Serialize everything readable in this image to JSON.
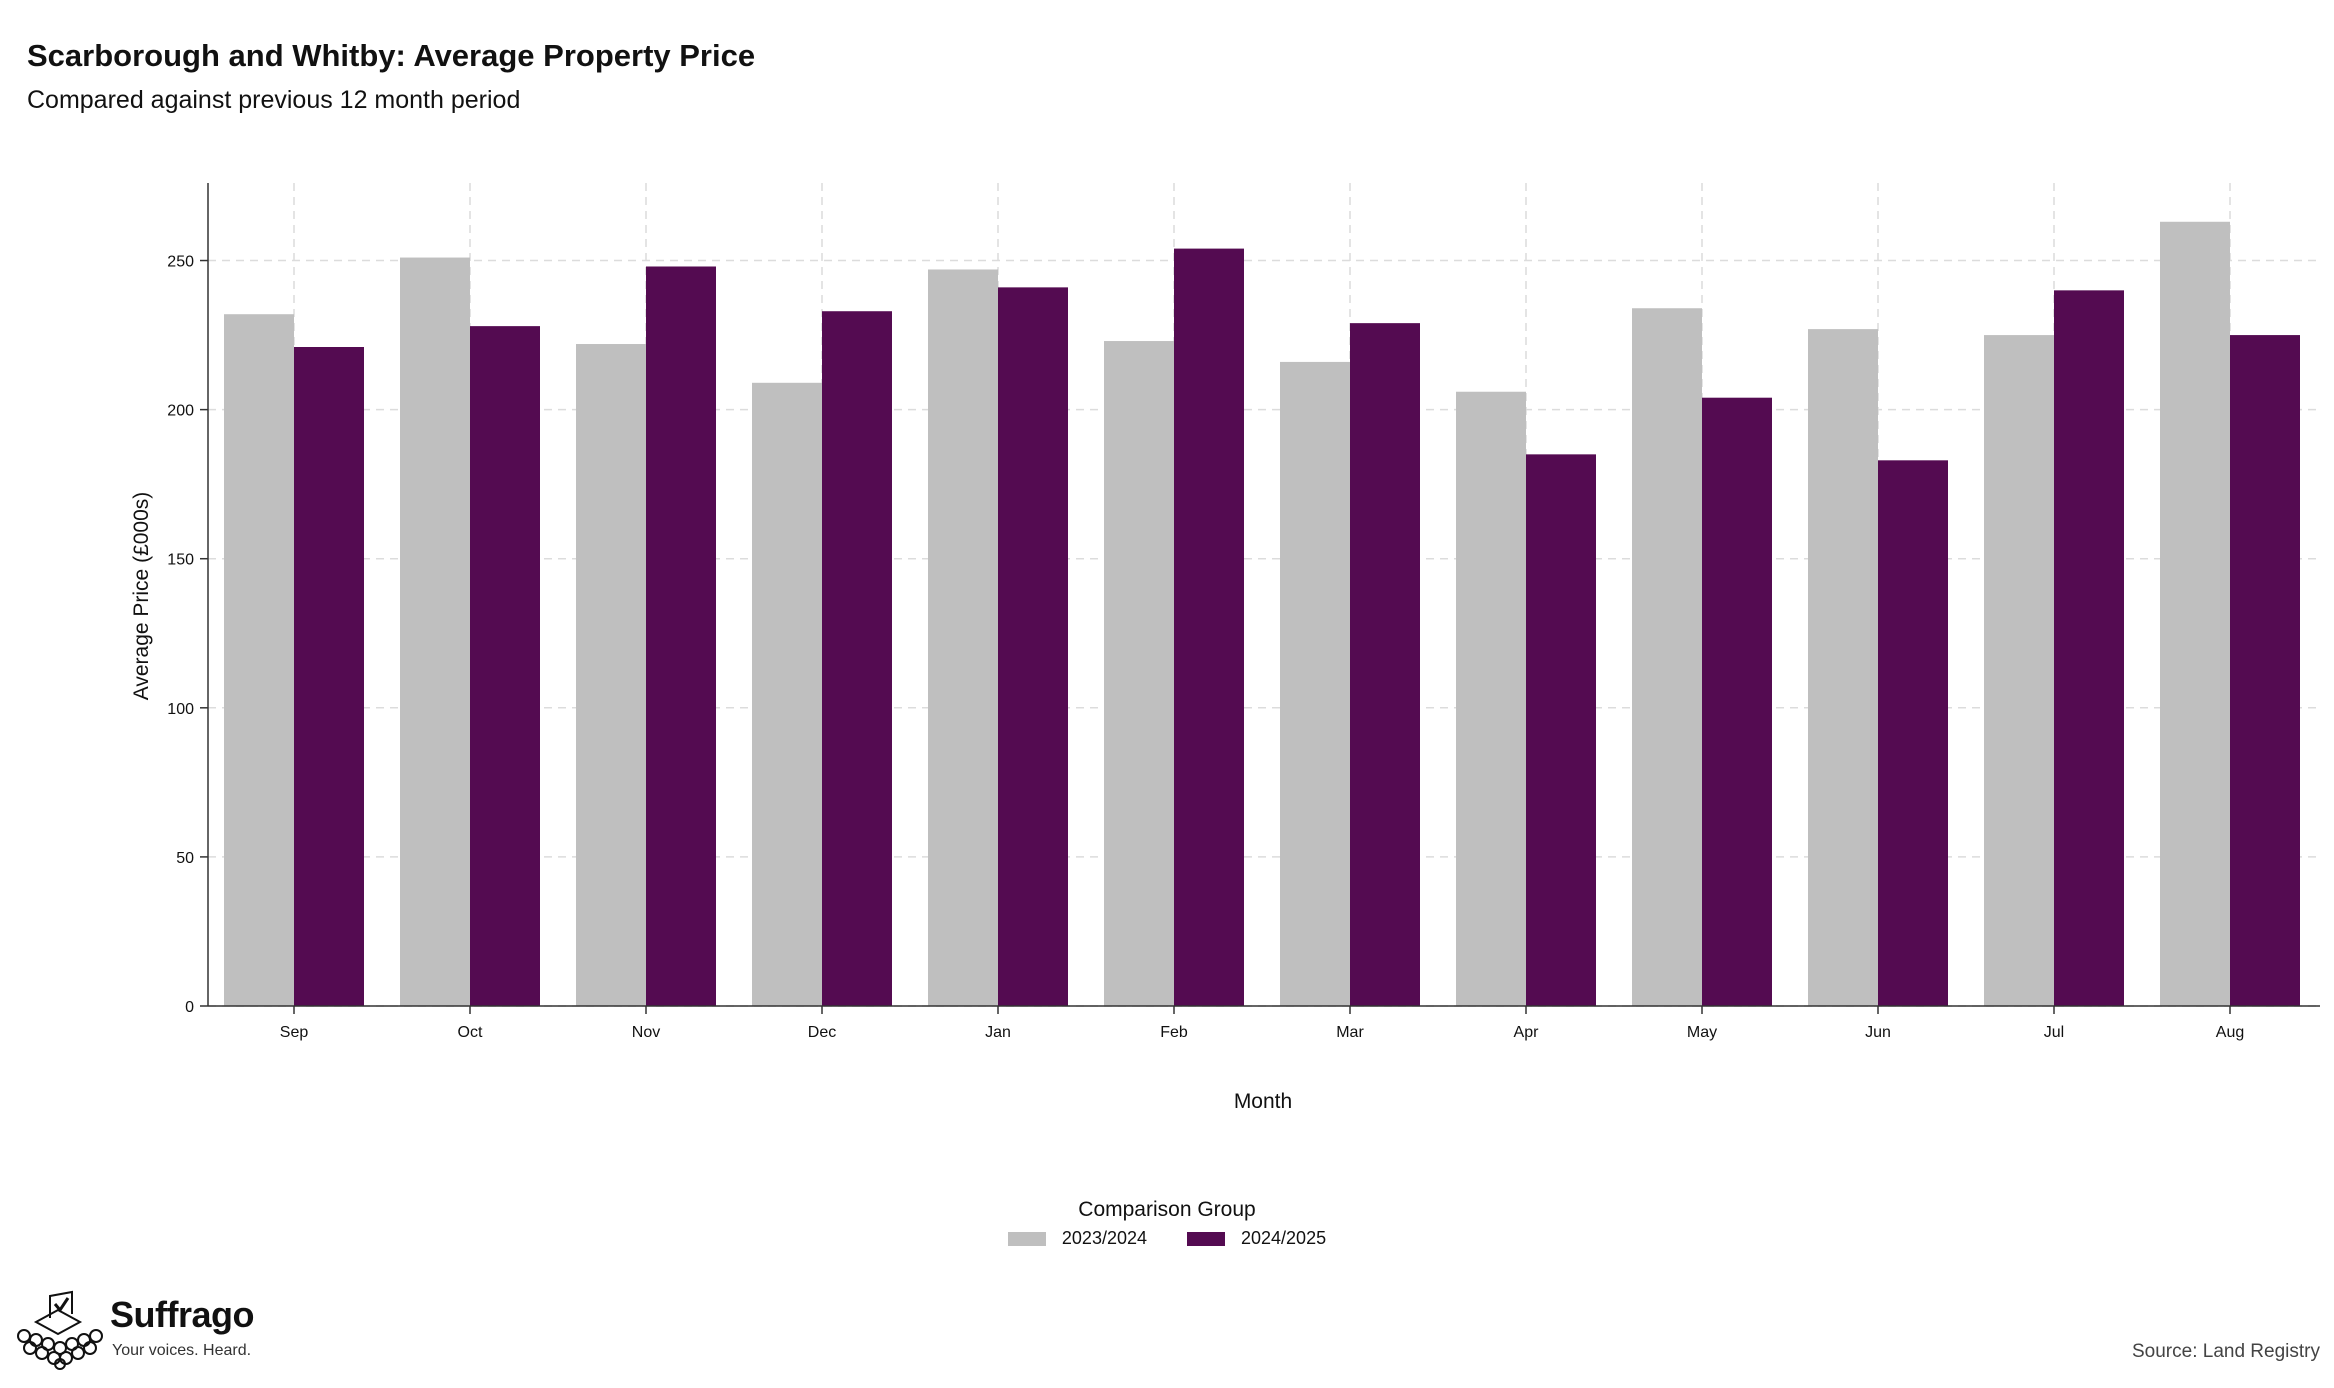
{
  "chart_data": {
    "type": "bar",
    "title": "Scarborough and Whitby: Average Property Price",
    "subtitle": "Compared against previous 12 month period",
    "xlabel": "Month",
    "ylabel": "Average Price (£000s)",
    "categories": [
      "Sep",
      "Oct",
      "Nov",
      "Dec",
      "Jan",
      "Feb",
      "Mar",
      "Apr",
      "May",
      "Jun",
      "Jul",
      "Aug"
    ],
    "series": [
      {
        "name": "2023/2024",
        "color": "#bfbfbf",
        "values": [
          232,
          251,
          222,
          209,
          247,
          223,
          216,
          206,
          234,
          227,
          225,
          263
        ]
      },
      {
        "name": "2024/2025",
        "color": "#540b51",
        "values": [
          221,
          228,
          248,
          233,
          241,
          254,
          229,
          185,
          204,
          183,
          240,
          225
        ]
      }
    ],
    "yticks": [
      0,
      50,
      100,
      150,
      200,
      250
    ],
    "ylim": [
      0,
      276
    ],
    "grid": true,
    "legend_title": "Comparison Group",
    "legend_position": "bottom-center"
  },
  "footer": {
    "brand": "Suffrago",
    "tagline": "Your voices. Heard.",
    "source": "Source: Land Registry",
    "logo_icon": "ballot-box-crowd-icon"
  }
}
